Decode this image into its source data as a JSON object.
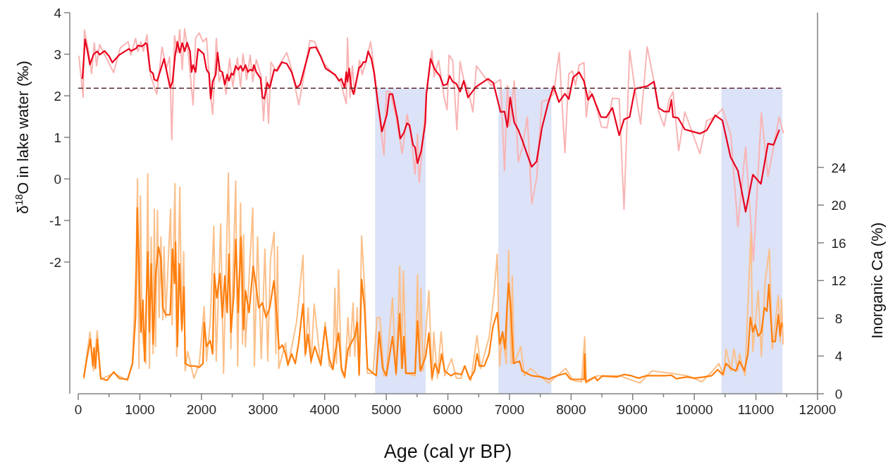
{
  "chart_data": {
    "type": "line",
    "xlabel": "Age (cal yr BP)",
    "ylabel": "δ$^{18}$O in lake water (‰)",
    "y2label": "Inorganic Ca (%)",
    "xlim": [
      0,
      12000
    ],
    "xticks": [
      0,
      {
        "value": 500,
        "label": null
      },
      1000,
      {
        "value": 1500,
        "label": null
      },
      2000,
      {
        "value": 2500,
        "label": null
      },
      3000,
      {
        "value": 3500,
        "label": null
      },
      4000,
      {
        "value": 4500,
        "label": null
      },
      5000,
      {
        "value": 5500,
        "label": null
      },
      6000,
      {
        "value": 6500,
        "label": null
      },
      7000,
      {
        "value": 7500,
        "label": null
      },
      8000,
      {
        "value": 8500,
        "label": null
      },
      9000,
      {
        "value": 9500,
        "label": null
      },
      10000,
      {
        "value": 10500,
        "label": null
      },
      11000,
      {
        "value": 11500,
        "label": null
      },
      12000
    ],
    "ylim": [
      -5.17,
      4
    ],
    "yticks": [
      -2,
      -1,
      0,
      1,
      2,
      3,
      4
    ],
    "y2lim": [
      0,
      40.4
    ],
    "y2ticks": [
      0,
      4,
      8,
      12,
      16,
      20,
      24
    ],
    "grid": false,
    "line_style": "solid",
    "marker": "none",
    "ref_lines": [
      {
        "axis": "y",
        "value": 2.18,
        "color": "#5a2a2a",
        "line_style": "dashed"
      }
    ],
    "bands": [
      {
        "axis": "x",
        "from": 4820,
        "to": 5640,
        "color": "#dce2f7"
      },
      {
        "axis": "x",
        "from": 6820,
        "to": 7680,
        "color": "#dce2f7"
      },
      {
        "axis": "x",
        "from": 10440,
        "to": 11430,
        "color": "#dce2f7"
      }
    ],
    "series": [
      {
        "type": "line",
        "axis": "y",
        "color": "#f9b4b4",
        "x": [
          11,
          80,
          100,
          172,
          217,
          261,
          297,
          348,
          575,
          682,
          812,
          852,
          932,
          971,
          1017,
          1057,
          1116,
          1176,
          1274,
          1361,
          1432,
          1483,
          1519,
          1563,
          1610,
          1648,
          1688,
          1727,
          1784,
          1865,
          1905,
          1965,
          2025,
          2083,
          2143,
          2182,
          2242,
          2288,
          2340,
          2399,
          2458,
          2508,
          2585,
          2635,
          2674,
          2734,
          2791,
          2832,
          2891,
          2970,
          3008,
          3049,
          3089,
          3129,
          3208,
          3385,
          3454,
          3580,
          3760,
          3839,
          3976,
          4133,
          4252,
          4351,
          4370,
          4411,
          4450,
          4488,
          4567,
          4608,
          4667,
          4746,
          4825,
          4891,
          4962,
          5002,
          5061,
          5159,
          5259,
          5338,
          5397,
          5467,
          5507,
          5534,
          5594,
          5651,
          5740,
          5777,
          5850,
          5937,
          5988,
          6019,
          6078,
          6146,
          6198,
          6257,
          6327,
          6406,
          6463,
          6612,
          6710,
          6855,
          6919,
          6966,
          7005,
          7077,
          7143,
          7210,
          7290,
          7361,
          7440,
          7527,
          7618,
          7716,
          7806,
          7900,
          7962,
          8023,
          8071,
          8130,
          8209,
          8246,
          8299,
          8366,
          8495,
          8584,
          8670,
          8781,
          8859,
          8950,
          9037,
          9128,
          9235,
          9345,
          9420,
          9510,
          9589,
          9655,
          9746,
          9846,
          10090,
          10201,
          10339,
          10456,
          10593,
          10707,
          10833,
          10959,
          11088,
          11196,
          11377,
          11444
        ],
        "values": [
          2.95,
          1.96,
          3.58,
          3.04,
          2.53,
          3.27,
          2.72,
          3.23,
          2.56,
          3.15,
          3.3,
          2.98,
          3.38,
          3.07,
          3.3,
          3.07,
          3.47,
          2.48,
          2.04,
          3.17,
          2.66,
          2.93,
          0.94,
          3.45,
          3.04,
          3.59,
          2.63,
          3.61,
          3.04,
          1.78,
          3.39,
          3.51,
          3.3,
          3.39,
          2.07,
          1.55,
          3.38,
          2.34,
          2.57,
          2.04,
          2.89,
          2.22,
          2.91,
          2.22,
          3.01,
          2.39,
          2.98,
          2.34,
          2.87,
          2.46,
          1.4,
          2.46,
          1.34,
          2.81,
          2.6,
          3.04,
          2.69,
          1.78,
          3.33,
          3.3,
          2.8,
          2.54,
          2.36,
          1.81,
          3.39,
          1.96,
          2.72,
          2.04,
          2.86,
          2.51,
          2.8,
          3.3,
          2.36,
          1.46,
          0.58,
          2.1,
          2.1,
          1.49,
          0.61,
          1.55,
          1.11,
          0.12,
          1.08,
          -0.08,
          0.87,
          2.04,
          3.09,
          2.46,
          2.85,
          1.98,
          1.66,
          2.98,
          2.85,
          1.18,
          2.83,
          2.39,
          2.16,
          1.61,
          2.72,
          2.42,
          2.25,
          2.39,
          0.2,
          2.25,
          1.28,
          2.36,
          0.41,
          0.76,
          1.49,
          -0.59,
          0,
          1.86,
          1.9,
          2.04,
          3.04,
          0.63,
          2.53,
          2.6,
          2.25,
          2.74,
          2.8,
          1.49,
          2.13,
          1.98,
          1.25,
          1.23,
          1.94,
          1.93,
          -0.73,
          3.09,
          2.16,
          1.32,
          3.18,
          2.34,
          1.63,
          1.27,
          1.9,
          2.1,
          0.68,
          1.61,
          0.61,
          1.4,
          1.49,
          1.69,
          1.05,
          -1.15,
          0.76,
          -1.98,
          1.59,
          0.06,
          1.49,
          1.11
        ]
      },
      {
        "type": "line",
        "axis": "y",
        "color": "#e8001c",
        "x": [
          69,
          111,
          149,
          190,
          249,
          309,
          348,
          427,
          503,
          553,
          663,
          821,
          860,
          939,
          971,
          1038,
          1097,
          1116,
          1167,
          1213,
          1235,
          1281,
          1393,
          1492,
          1531,
          1571,
          1610,
          1648,
          1688,
          1727,
          1767,
          1815,
          1839,
          1865,
          1905,
          1945,
          2036,
          2083,
          2123,
          2151,
          2182,
          2232,
          2261,
          2300,
          2340,
          2380,
          2418,
          2446,
          2486,
          2517,
          2556,
          2597,
          2635,
          2674,
          2714,
          2753,
          2791,
          2832,
          2852,
          2891,
          2959,
          2990,
          3020,
          3049,
          3069,
          3109,
          3180,
          3225,
          3306,
          3385,
          3464,
          3543,
          3602,
          3760,
          3858,
          3935,
          4015,
          4174,
          4232,
          4272,
          4324,
          4351,
          4370,
          4398,
          4430,
          4469,
          4560,
          4598,
          4627,
          4667,
          4706,
          4758,
          4804,
          4862,
          4930,
          5010,
          5049,
          5101,
          5180,
          5228,
          5285,
          5338,
          5377,
          5434,
          5467,
          5507,
          5566,
          5633,
          5651,
          5720,
          5789,
          5869,
          5926,
          5988,
          6028,
          6078,
          6138,
          6198,
          6257,
          6327,
          6452,
          6651,
          6738,
          6855,
          6919,
          6966,
          7012,
          7077,
          7143,
          7222,
          7290,
          7361,
          7440,
          7527,
          7625,
          7716,
          7802,
          7900,
          7962,
          8033,
          8130,
          8209,
          8276,
          8339,
          8406,
          8485,
          8571,
          8670,
          8781,
          8859,
          8950,
          9037,
          9235,
          9345,
          9420,
          9510,
          9589,
          9629,
          9655,
          9735,
          9846,
          9944,
          10090,
          10201,
          10339,
          10456,
          10588,
          10707,
          10833,
          10951,
          11081,
          11196,
          11286,
          11377
        ],
        "values": [
          2.42,
          3.36,
          3.09,
          2.75,
          3,
          3.07,
          2.99,
          3.08,
          2.95,
          2.8,
          2.98,
          3.13,
          3.08,
          3.14,
          3.21,
          3.19,
          3.27,
          3.24,
          2.6,
          2.54,
          2.39,
          2.36,
          2.89,
          2.19,
          2.34,
          2.95,
          3.3,
          3.04,
          3.27,
          3.07,
          3.28,
          3.07,
          2.57,
          2.74,
          2.57,
          3.13,
          3.01,
          2.63,
          2.54,
          1.93,
          2.34,
          2.51,
          3.04,
          2.6,
          2.57,
          2.27,
          2.51,
          2.36,
          2.54,
          2.5,
          2.72,
          2.63,
          2.72,
          2.6,
          2.74,
          2.57,
          2.63,
          2.6,
          2.74,
          2.57,
          2.42,
          1.96,
          1.93,
          2.14,
          2.31,
          2.19,
          2.63,
          2.6,
          2.81,
          2.77,
          2.57,
          2.19,
          2.27,
          3.15,
          3.17,
          2.95,
          2.66,
          2.5,
          2.36,
          2.41,
          2.19,
          2.57,
          2.34,
          2.66,
          2.22,
          2.04,
          2.68,
          2.72,
          2.81,
          2.81,
          3.07,
          2.89,
          2.54,
          1.84,
          1.14,
          1.55,
          2.04,
          2.04,
          1.46,
          0.97,
          1.11,
          1.34,
          1.29,
          0.82,
          0.76,
          0.38,
          0.67,
          1.34,
          2.04,
          2.89,
          2.63,
          2.48,
          2.25,
          2.28,
          2.48,
          2.34,
          2.29,
          2.1,
          2.36,
          1.96,
          2.21,
          2.41,
          2.31,
          1.61,
          1.62,
          1.25,
          1.96,
          1.36,
          1.18,
          0.87,
          0.58,
          0.29,
          0.42,
          1.23,
          1.81,
          2.23,
          1.85,
          2.05,
          1.92,
          2.44,
          2.57,
          2.35,
          1.9,
          2.04,
          1.78,
          1.49,
          1.48,
          1.71,
          1.05,
          1.43,
          1.49,
          2.17,
          2.23,
          2.34,
          1.71,
          1.62,
          1.62,
          1.9,
          1.49,
          1.47,
          1.19,
          1.15,
          1.09,
          1.17,
          1.53,
          1.41,
          0.53,
          0.2,
          -0.79,
          0.1,
          -0.12,
          0.85,
          0.82,
          1.17
        ]
      },
      {
        "type": "line",
        "axis": "y2",
        "color": "#fbc08a",
        "x": [
          91,
          190,
          249,
          308,
          367,
          576,
          801,
          880,
          939,
          963,
          986,
          1010,
          1038,
          1058,
          1097,
          1129,
          1156,
          1184,
          1215,
          1235,
          1255,
          1286,
          1314,
          1342,
          1373,
          1393,
          1420,
          1499,
          1523,
          1570,
          1598,
          1649,
          1681,
          1712,
          1736,
          1775,
          1878,
          1965,
          2044,
          2083,
          2142,
          2201,
          2241,
          2312,
          2359,
          2438,
          2478,
          2556,
          2588,
          2635,
          2667,
          2683,
          2714,
          2833,
          2860,
          2911,
          2971,
          3030,
          3077,
          3120,
          3180,
          3207,
          3235,
          3255,
          3365,
          3404,
          3543,
          3649,
          3681,
          3732,
          3779,
          3830,
          3937,
          4008,
          4075,
          4134,
          4166,
          4193,
          4225,
          4272,
          4324,
          4379,
          4410,
          4462,
          4489,
          4529,
          4560,
          4600,
          4647,
          4694,
          4785,
          4852,
          4896,
          4963,
          5002,
          5101,
          5160,
          5219,
          5246,
          5278,
          5325,
          5468,
          5507,
          5538,
          5562,
          5594,
          5692,
          5743,
          5771,
          5830,
          5890,
          5949,
          6059,
          6138,
          6217,
          6264,
          6375,
          6473,
          6532,
          6671,
          6749,
          6801,
          6840,
          6887,
          6947,
          6986,
          7026,
          7045,
          7077,
          7183,
          7242,
          7341,
          7479,
          7637,
          7775,
          7913,
          8031,
          8169,
          8221,
          8248,
          8426,
          8584,
          8781,
          9116,
          9313,
          9629,
          9885,
          10122,
          10299,
          10398,
          10477,
          10516,
          10595,
          10643,
          10706,
          10733,
          10824,
          10919,
          10950,
          11037,
          11088,
          11147,
          11218,
          11266,
          11364,
          11392,
          11415,
          11443
        ],
        "values": [
          1.65,
          6.55,
          2.43,
          6.67,
          1.53,
          2.17,
          1.4,
          3.2,
          13.51,
          22.79,
          2.69,
          20.99,
          6.55,
          5.26,
          3.2,
          23.31,
          2.69,
          16.61,
          4.23,
          19.57,
          5,
          19.44,
          8.09,
          16.61,
          7.84,
          15.58,
          8.09,
          19.57,
          7.32,
          22.28,
          3.97,
          21.89,
          6.55,
          15.06,
          2.43,
          4.49,
          1.65,
          3.2,
          9.25,
          3.46,
          7.57,
          17.76,
          3.46,
          18.02,
          2.17,
          23.4,
          4.75,
          22.54,
          2.94,
          20.21,
          5.26,
          16.86,
          5,
          19.7,
          2.94,
          16.61,
          3.72,
          15.32,
          3.46,
          14.28,
          17.12,
          4.23,
          15.58,
          2.69,
          5.39,
          2.94,
          7.57,
          14.67,
          3.97,
          9.12,
          3.2,
          9.51,
          2.94,
          7.57,
          2.94,
          2.69,
          11.19,
          3.2,
          13.13,
          2.43,
          1.65,
          8.09,
          3.97,
          9.64,
          3.97,
          9.12,
          1.91,
          16.73,
          11.45,
          2.17,
          2.17,
          8.09,
          8.09,
          1.91,
          2.43,
          10.16,
          1.91,
          13.51,
          2.69,
          13,
          2.17,
          1.91,
          12.61,
          2.69,
          11.19,
          2.43,
          10.93,
          1.4,
          6.55,
          1.65,
          6.55,
          1.91,
          3.72,
          1.65,
          1.65,
          2.94,
          1.4,
          6.16,
          2.69,
          6.03,
          10.55,
          14.8,
          2.94,
          6.55,
          3.2,
          15.19,
          3.2,
          12.48,
          3.2,
          5,
          1.91,
          2.69,
          1.91,
          1.14,
          1.91,
          2.69,
          1.4,
          1.27,
          6.03,
          1.14,
          1.91,
          1.91,
          1.91,
          1.14,
          2.43,
          2.17,
          1.91,
          1.27,
          2.43,
          3.2,
          1.91,
          4.75,
          2.43,
          4.75,
          2.43,
          4.23,
          1.91,
          17.12,
          4.49,
          10.93,
          3.97,
          11.71,
          15.32,
          4.75,
          10.42,
          5.52,
          10.03,
          5.26
        ]
      },
      {
        "type": "line",
        "axis": "y2",
        "color": "#ff7f0e",
        "x": [
          92,
          130,
          198,
          237,
          256,
          280,
          309,
          366,
          466,
          577,
          663,
          801,
          881,
          931,
          959,
          986,
          1018,
          1050,
          1078,
          1129,
          1155,
          1184,
          1215,
          1255,
          1302,
          1342,
          1373,
          1421,
          1492,
          1531,
          1563,
          1579,
          1610,
          1642,
          1682,
          1716,
          1737,
          1808,
          1888,
          1965,
          2025,
          2044,
          2083,
          2143,
          2182,
          2208,
          2249,
          2300,
          2340,
          2380,
          2418,
          2446,
          2478,
          2525,
          2557,
          2597,
          2643,
          2683,
          2715,
          2773,
          2840,
          2891,
          2930,
          2990,
          3049,
          3109,
          3176,
          3219,
          3259,
          3314,
          3365,
          3404,
          3464,
          3523,
          3581,
          3649,
          3689,
          3728,
          3780,
          3839,
          3937,
          4008,
          4075,
          4133,
          4174,
          4225,
          4273,
          4324,
          4379,
          4442,
          4488,
          4529,
          4560,
          4600,
          4647,
          4695,
          4785,
          4837,
          4885,
          4942,
          5002,
          5101,
          5159,
          5218,
          5258,
          5285,
          5318,
          5397,
          5467,
          5507,
          5555,
          5640,
          5692,
          5742,
          5790,
          5850,
          5898,
          5948,
          6048,
          6118,
          6217,
          6276,
          6355,
          6433,
          6474,
          6512,
          6591,
          6669,
          6730,
          6770,
          6801,
          6841,
          6888,
          6928,
          6959,
          6986,
          7018,
          7065,
          7164,
          7204,
          7283,
          7361,
          7519,
          7637,
          7716,
          7795,
          7914,
          7992,
          8150,
          8209,
          8221,
          8236,
          8385,
          8426,
          8505,
          8742,
          8859,
          8978,
          9096,
          9215,
          9372,
          9529,
          9629,
          9708,
          9885,
          10003,
          10161,
          10280,
          10379,
          10458,
          10516,
          10594,
          10673,
          10733,
          10812,
          10871,
          10910,
          10950,
          10989,
          11037,
          11088,
          11139,
          11179,
          11210,
          11266,
          11313,
          11364,
          11393,
          11416,
          11424
        ],
        "values": [
          1.78,
          3.33,
          5.78,
          2.94,
          4.87,
          2.69,
          5.78,
          1.64,
          1.42,
          2.32,
          1.64,
          1.53,
          3.21,
          8.1,
          19.7,
          13.51,
          6.55,
          9.9,
          3.45,
          15.06,
          6.55,
          13.77,
          5.26,
          12.48,
          15.57,
          14.28,
          9.12,
          8.37,
          8.37,
          15.32,
          11.71,
          16.09,
          5.01,
          13.77,
          6.8,
          11.32,
          3.21,
          2.94,
          2.94,
          2.81,
          3.21,
          7.58,
          5.01,
          5.64,
          4.23,
          12.74,
          10.17,
          12.74,
          8.1,
          12.48,
          8.61,
          14.8,
          6.55,
          10.41,
          16.37,
          8.61,
          16.6,
          6.8,
          10.93,
          8.61,
          13.51,
          11.19,
          9.12,
          9.64,
          8.1,
          9.12,
          11.96,
          8.61,
          4.75,
          5.16,
          4.23,
          3.07,
          4.23,
          3.21,
          5.53,
          9.52,
          4.23,
          6.3,
          3.45,
          5.01,
          3.07,
          7.07,
          3.72,
          2.56,
          4.49,
          6.43,
          2.69,
          1.78,
          4.75,
          5.53,
          6.06,
          7.58,
          2.04,
          12.11,
          9.12,
          2.69,
          2.17,
          1.91,
          6.55,
          2.69,
          1.91,
          6.06,
          2.17,
          8.49,
          2.69,
          6.06,
          2.17,
          2.17,
          2.17,
          7.71,
          2.42,
          3.97,
          6.43,
          1.64,
          3.21,
          2.17,
          4.23,
          2.42,
          1.91,
          2.17,
          2.04,
          2.94,
          1.53,
          2.42,
          4.23,
          2.94,
          2.94,
          4.23,
          7.07,
          7.97,
          8.61,
          5.26,
          6.55,
          4.75,
          9.13,
          11.71,
          9.39,
          3.21,
          3.45,
          2.42,
          2.17,
          1.91,
          1.78,
          1.53,
          1.78,
          1.96,
          2.17,
          1.53,
          1.53,
          1.53,
          4.23,
          1.27,
          1.78,
          1.4,
          1.87,
          1.78,
          2.04,
          1.91,
          1.65,
          1.91,
          1.91,
          1.91,
          1.96,
          1.6,
          1.78,
          1.65,
          1.78,
          1.91,
          2.56,
          2.04,
          3.21,
          2.69,
          2.42,
          3.45,
          2.42,
          4.23,
          8.1,
          6.55,
          7.33,
          6.11,
          6.55,
          9.13,
          8.75,
          11.59,
          5.53,
          5.53,
          8.37,
          6.11,
          7.48,
          7.14
        ]
      }
    ]
  }
}
